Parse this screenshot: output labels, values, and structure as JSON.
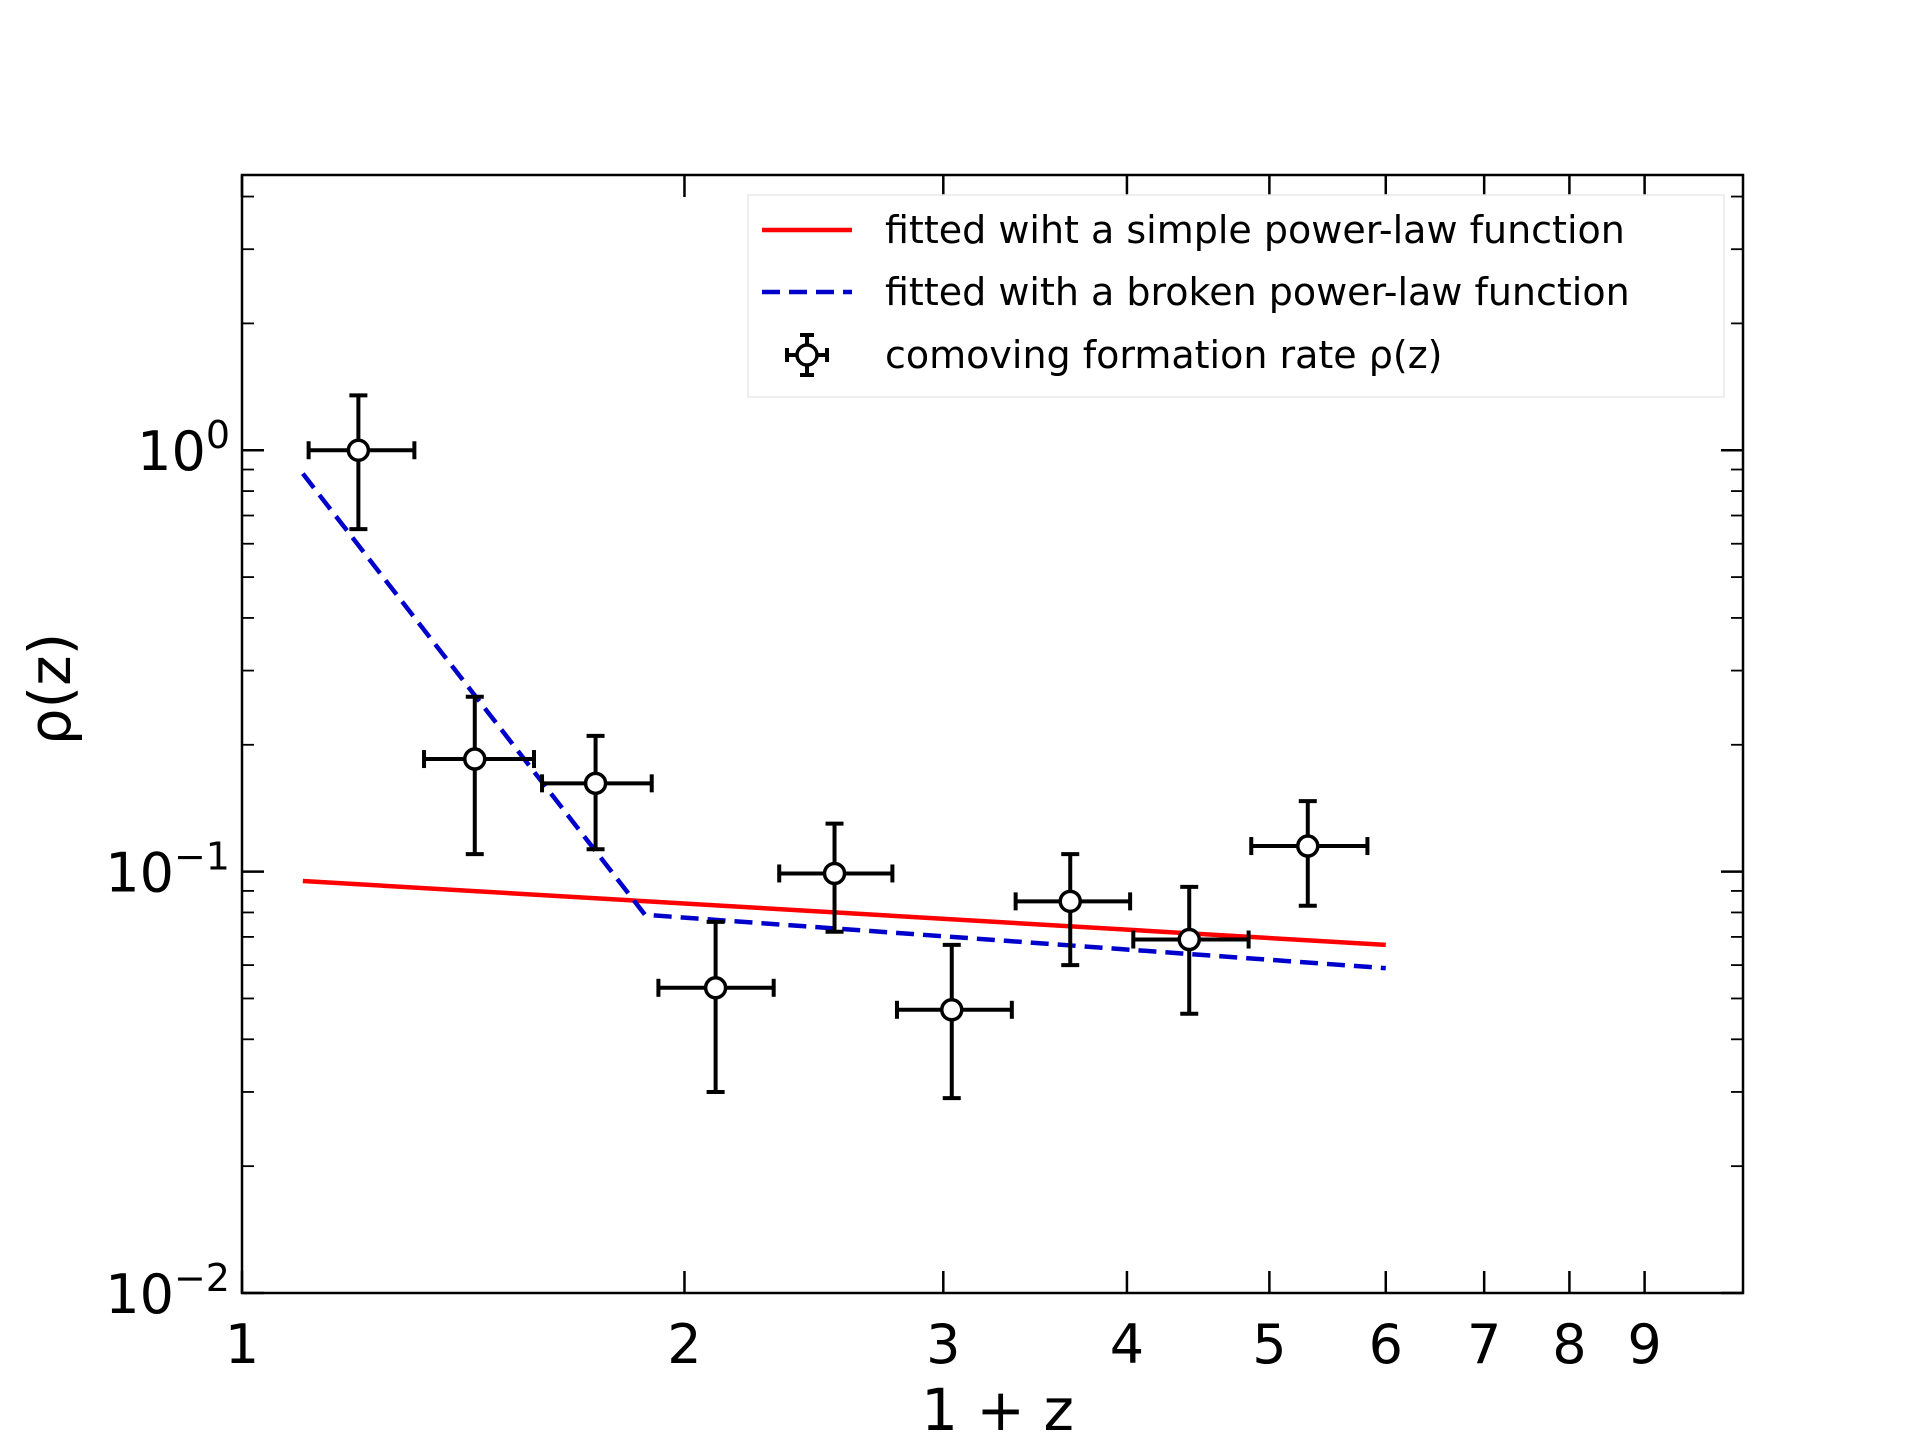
{
  "chart_data": {
    "type": "scatter",
    "xlabel": "1 + z",
    "ylabel": "ρ(z)",
    "xscale": "log",
    "yscale": "log",
    "xlim": [
      1,
      10.5
    ],
    "ylim": [
      0.01,
      4.5
    ],
    "grid": false,
    "legend_position": "top-right",
    "x_ticks": [
      1,
      2,
      3,
      4,
      5,
      6,
      7,
      8,
      9
    ],
    "y_ticks": [
      {
        "value": 1,
        "base": "10",
        "exp": "0"
      },
      {
        "value": 0.1,
        "base": "10",
        "exp": "−1"
      },
      {
        "value": 0.01,
        "base": "10",
        "exp": "−2"
      }
    ],
    "series": [
      {
        "name": "fitted wiht a simple power-law function",
        "kind": "line",
        "style": "solid",
        "color": "#ff0000",
        "x": [
          1.1,
          6.0
        ],
        "y": [
          0.095,
          0.067
        ]
      },
      {
        "name": "fitted with a broken power-law function",
        "kind": "line",
        "style": "dashed",
        "color": "#0000cc",
        "x": [
          1.1,
          1.88,
          6.0
        ],
        "y": [
          0.88,
          0.079,
          0.059
        ]
      },
      {
        "name": "comoving formation rate ρ(z)",
        "kind": "errorbar",
        "color": "#000000",
        "points": [
          {
            "x": 1.2,
            "x_lo": 1.11,
            "x_hi": 1.31,
            "y": 1.0,
            "y_lo": 0.65,
            "y_hi": 1.35
          },
          {
            "x": 1.44,
            "x_lo": 1.33,
            "x_hi": 1.58,
            "y": 0.185,
            "y_lo": 0.11,
            "y_hi": 0.26
          },
          {
            "x": 1.74,
            "x_lo": 1.6,
            "x_hi": 1.9,
            "y": 0.162,
            "y_lo": 0.113,
            "y_hi": 0.21
          },
          {
            "x": 2.1,
            "x_lo": 1.92,
            "x_hi": 2.3,
            "y": 0.053,
            "y_lo": 0.03,
            "y_hi": 0.076
          },
          {
            "x": 2.53,
            "x_lo": 2.32,
            "x_hi": 2.77,
            "y": 0.099,
            "y_lo": 0.072,
            "y_hi": 0.13
          },
          {
            "x": 3.04,
            "x_lo": 2.79,
            "x_hi": 3.34,
            "y": 0.047,
            "y_lo": 0.029,
            "y_hi": 0.067
          },
          {
            "x": 3.66,
            "x_lo": 3.36,
            "x_hi": 4.02,
            "y": 0.085,
            "y_lo": 0.06,
            "y_hi": 0.11
          },
          {
            "x": 4.41,
            "x_lo": 4.04,
            "x_hi": 4.84,
            "y": 0.069,
            "y_lo": 0.046,
            "y_hi": 0.092
          },
          {
            "x": 5.31,
            "x_lo": 4.86,
            "x_hi": 5.83,
            "y": 0.115,
            "y_lo": 0.083,
            "y_hi": 0.147
          }
        ]
      }
    ]
  }
}
